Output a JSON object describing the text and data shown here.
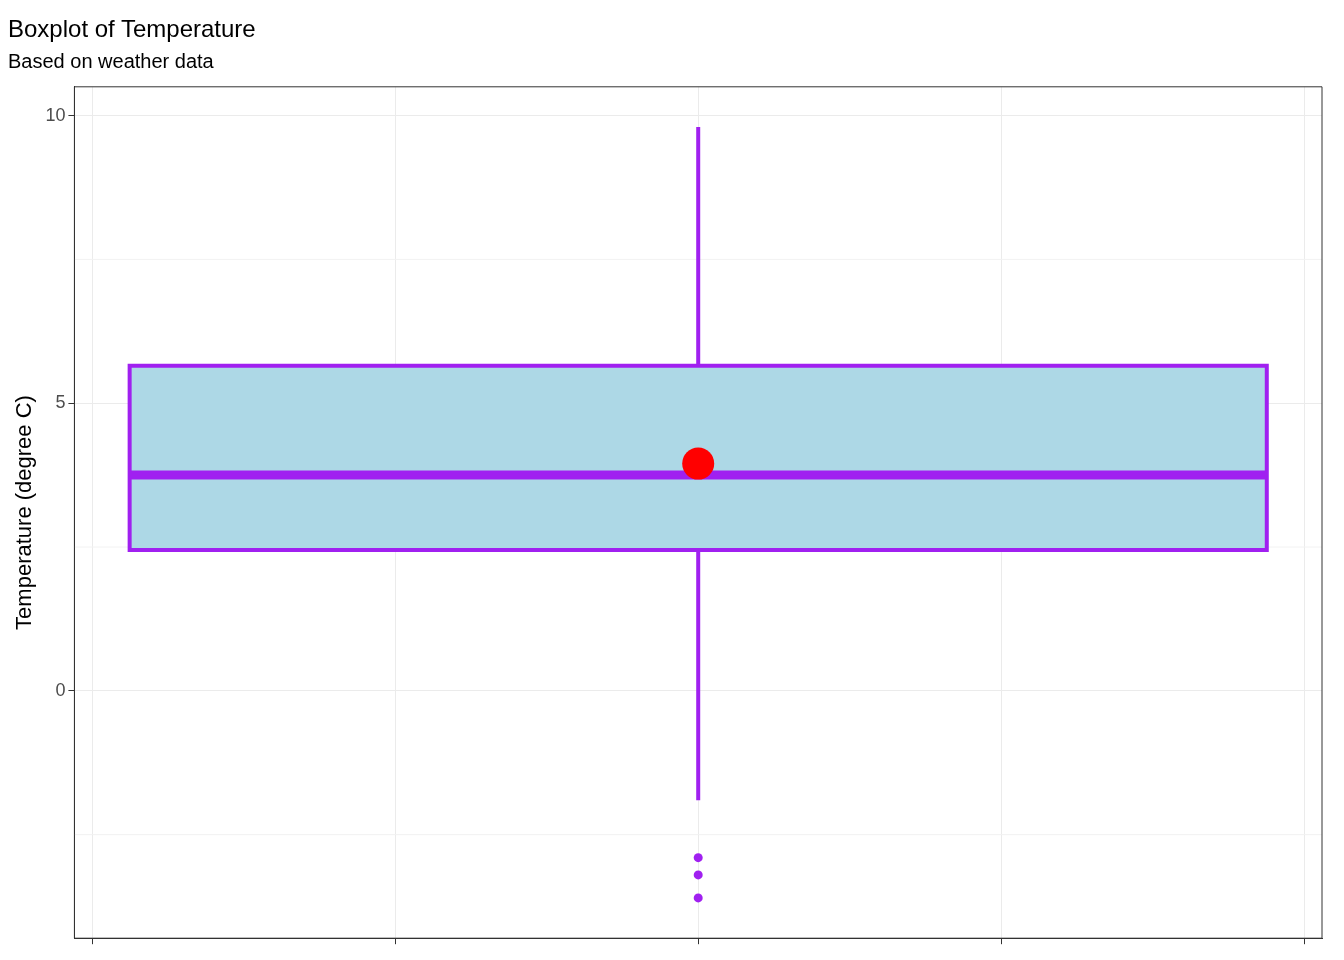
{
  "chart_data": {
    "type": "box",
    "title": "Boxplot of Temperature",
    "subtitle": "Based on weather data",
    "ylabel": "Temperature (degree C)",
    "categories": [
      null
    ],
    "series": [
      {
        "color": "#add8e6",
        "boxes": [
          {
            "low": -1.9,
            "q1": 2.45,
            "median": 3.75,
            "q3": 5.65,
            "high": 9.8,
            "mean": 3.95,
            "outliers": [
              -2.9,
              -3.2,
              -3.6
            ]
          }
        ]
      }
    ],
    "ylim": [
      -4.3,
      10.5
    ],
    "yticks": [
      0,
      5,
      10
    ],
    "grid": true,
    "tick_labels": "y",
    "legend": false
  }
}
